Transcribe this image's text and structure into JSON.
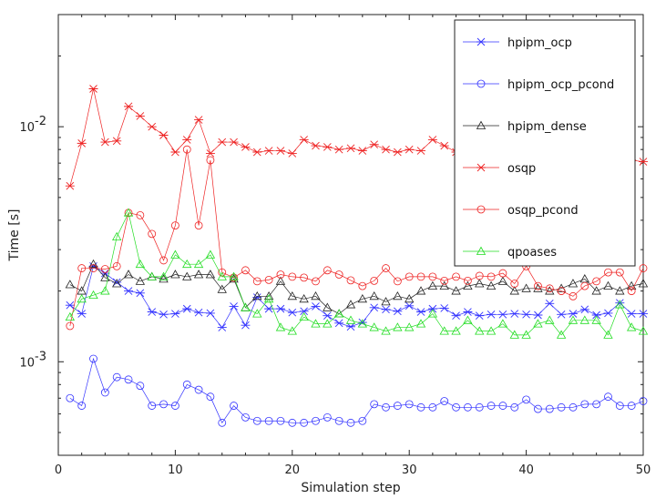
{
  "chart_data": {
    "type": "line",
    "xlabel": "Simulation step",
    "ylabel": "Time [s]",
    "xlim": [
      0,
      50
    ],
    "ylim": [
      0.0004,
      0.03
    ],
    "yscale": "log",
    "x_ticks": [
      "0",
      "10",
      "20",
      "30",
      "40",
      "50"
    ],
    "y_ticks": [
      {
        "value": 0.01,
        "base": "10",
        "exp": "-2"
      },
      {
        "value": 0.001,
        "base": "10",
        "exp": "-3"
      }
    ],
    "grid": false,
    "legend_position": "top-right",
    "x": [
      1,
      2,
      3,
      4,
      5,
      6,
      7,
      8,
      9,
      10,
      11,
      12,
      13,
      14,
      15,
      16,
      17,
      18,
      19,
      20,
      21,
      22,
      23,
      24,
      25,
      26,
      27,
      28,
      29,
      30,
      31,
      32,
      33,
      34,
      35,
      36,
      37,
      38,
      39,
      40,
      41,
      42,
      43,
      44,
      45,
      46,
      47,
      48,
      49,
      50
    ],
    "series": [
      {
        "name": "hpipm_ocp",
        "color": "#3333ff",
        "marker": "star",
        "values": [
          0.00174,
          0.0016,
          0.00255,
          0.00238,
          0.00218,
          0.002,
          0.00196,
          0.00163,
          0.00159,
          0.0016,
          0.00168,
          0.00162,
          0.00161,
          0.0014,
          0.00172,
          0.00143,
          0.00188,
          0.00168,
          0.00168,
          0.00162,
          0.00164,
          0.00172,
          0.00157,
          0.00146,
          0.00141,
          0.00147,
          0.0017,
          0.00167,
          0.00164,
          0.00173,
          0.00163,
          0.00168,
          0.00169,
          0.00157,
          0.00163,
          0.00157,
          0.00159,
          0.00159,
          0.0016,
          0.00159,
          0.00158,
          0.00177,
          0.00159,
          0.0016,
          0.00167,
          0.00158,
          0.00161,
          0.00178,
          0.0016,
          0.0016
        ]
      },
      {
        "name": "hpipm_ocp_pcond",
        "color": "#3333ff",
        "marker": "circle",
        "values": [
          0.0007,
          0.00065,
          0.00103,
          0.00074,
          0.00086,
          0.00084,
          0.00079,
          0.00065,
          0.00066,
          0.00065,
          0.0008,
          0.00076,
          0.00071,
          0.00055,
          0.00065,
          0.00058,
          0.00056,
          0.00056,
          0.00056,
          0.00055,
          0.00055,
          0.00056,
          0.00058,
          0.00056,
          0.00055,
          0.00056,
          0.00066,
          0.00064,
          0.00065,
          0.00066,
          0.00064,
          0.00064,
          0.00068,
          0.00064,
          0.00064,
          0.00064,
          0.00065,
          0.00065,
          0.00064,
          0.00069,
          0.00063,
          0.00063,
          0.00064,
          0.00064,
          0.00066,
          0.00066,
          0.00071,
          0.00065,
          0.00065,
          0.00068
        ]
      },
      {
        "name": "hpipm_dense",
        "color": "#222222",
        "marker": "triangle",
        "values": [
          0.00213,
          0.002,
          0.0026,
          0.00228,
          0.00215,
          0.00235,
          0.0022,
          0.0023,
          0.00225,
          0.00235,
          0.0023,
          0.00235,
          0.00235,
          0.00203,
          0.00225,
          0.0017,
          0.0019,
          0.0019,
          0.0022,
          0.0019,
          0.00185,
          0.0019,
          0.0017,
          0.0016,
          0.00175,
          0.00185,
          0.0019,
          0.0018,
          0.0019,
          0.00185,
          0.002,
          0.0021,
          0.0021,
          0.002,
          0.0021,
          0.00215,
          0.0021,
          0.0022,
          0.002,
          0.00205,
          0.00205,
          0.002,
          0.00205,
          0.00215,
          0.00225,
          0.002,
          0.0021,
          0.002,
          0.0021,
          0.00215
        ]
      },
      {
        "name": "osqp",
        "color": "#ee2222",
        "marker": "star",
        "values": [
          0.0056,
          0.0085,
          0.0145,
          0.0086,
          0.0087,
          0.0122,
          0.0111,
          0.01,
          0.0092,
          0.0078,
          0.0088,
          0.0107,
          0.0077,
          0.0086,
          0.0086,
          0.0082,
          0.0078,
          0.0079,
          0.0079,
          0.0077,
          0.0088,
          0.0083,
          0.0082,
          0.008,
          0.0081,
          0.0079,
          0.0084,
          0.008,
          0.0078,
          0.008,
          0.0079,
          0.0088,
          0.0083,
          0.0078,
          0.0085,
          0.008,
          0.0081,
          0.0083,
          0.0078,
          0.0078,
          0.0077,
          0.0074,
          0.007,
          0.0074,
          0.0073,
          0.0071,
          0.007,
          0.0073,
          0.0072,
          0.0071
        ]
      },
      {
        "name": "osqp_pcond",
        "color": "#ee2222",
        "marker": "circle",
        "values": [
          0.00142,
          0.0025,
          0.0025,
          0.00248,
          0.00255,
          0.0043,
          0.0042,
          0.0035,
          0.0027,
          0.0038,
          0.008,
          0.0038,
          0.0072,
          0.0024,
          0.00228,
          0.00245,
          0.0022,
          0.00223,
          0.00235,
          0.0023,
          0.00228,
          0.0022,
          0.00245,
          0.00235,
          0.00222,
          0.0021,
          0.00221,
          0.0025,
          0.0022,
          0.0023,
          0.0023,
          0.0023,
          0.00221,
          0.0023,
          0.00221,
          0.00232,
          0.0023,
          0.00238,
          0.00215,
          0.00255,
          0.0021,
          0.00205,
          0.002,
          0.0019,
          0.0021,
          0.0022,
          0.0024,
          0.0024,
          0.002,
          0.0025
        ]
      },
      {
        "name": "qpoases",
        "color": "#22dd22",
        "marker": "triangle",
        "values": [
          0.00155,
          0.00185,
          0.00192,
          0.002,
          0.0034,
          0.0043,
          0.0026,
          0.0023,
          0.0023,
          0.00285,
          0.0026,
          0.0026,
          0.00285,
          0.0023,
          0.0023,
          0.0017,
          0.0016,
          0.00185,
          0.0014,
          0.00135,
          0.00155,
          0.00145,
          0.00145,
          0.0016,
          0.0015,
          0.00145,
          0.0014,
          0.00135,
          0.0014,
          0.0014,
          0.00145,
          0.0016,
          0.00135,
          0.00135,
          0.0015,
          0.00135,
          0.00135,
          0.00145,
          0.0013,
          0.0013,
          0.00145,
          0.0015,
          0.0013,
          0.0015,
          0.0015,
          0.0015,
          0.0013,
          0.00175,
          0.0014,
          0.00135
        ]
      }
    ]
  }
}
